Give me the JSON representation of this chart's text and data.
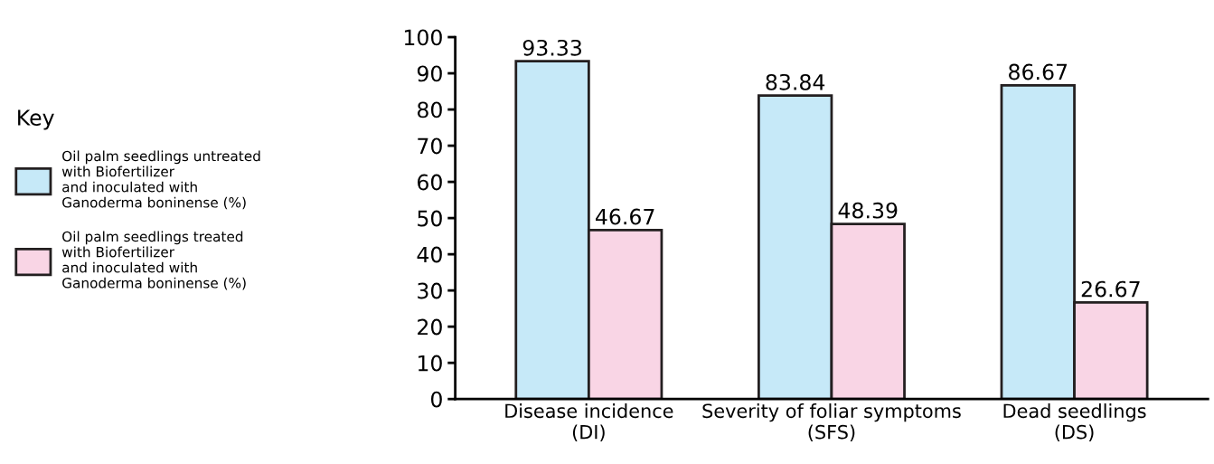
{
  "chart_data": {
    "type": "bar",
    "categories": [
      "Disease incidence\n(DI)",
      "Severity of foliar symptoms\n(SFS)",
      "Dead seedlings\n(DS)"
    ],
    "series": [
      {
        "name": "Oil palm seedlings untreated\nwith Biofertilizer\nand inoculated with\nGanoderma boninense (%)",
        "color": "#c6e9f8",
        "values": [
          93.33,
          83.84,
          86.67
        ]
      },
      {
        "name": "Oil palm seedlings treated\nwith Biofertilizer\nand inoculated with\nGanoderma boninense (%)",
        "color": "#f9d5e5",
        "values": [
          46.67,
          48.39,
          26.67
        ]
      }
    ],
    "legend_title": "Key",
    "legend": "left",
    "ylim": [
      0,
      100
    ],
    "yticks": [
      0,
      10,
      20,
      30,
      40,
      50,
      60,
      70,
      80,
      90,
      100
    ],
    "data_labels": true,
    "grid": false
  }
}
